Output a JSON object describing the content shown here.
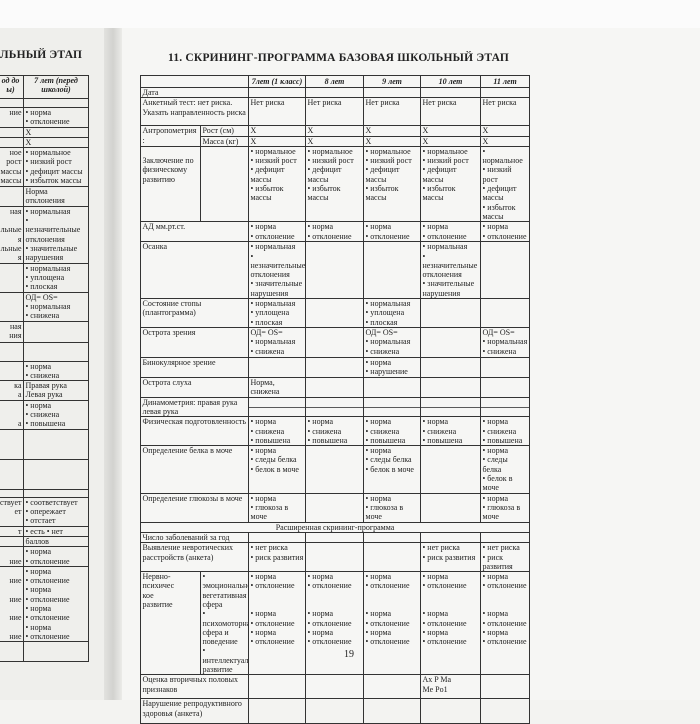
{
  "left_page": {
    "title": "ЛЬНЫЙ ЭТАП",
    "header": [
      "од до\nы)",
      "7 лет (перед\nшколой)"
    ],
    "rows": [
      [
        "",
        ""
      ],
      [
        "ние",
        "• норма\n• отклонение"
      ],
      [
        "",
        "X"
      ],
      [
        "",
        "X"
      ],
      [
        "ное\nрост\nмассы\n массы",
        "• нормальное\n• низкий рост\n• дефицит массы\n• избыток массы"
      ],
      [
        "",
        "Норма\nотклонения"
      ],
      [
        "ная\n\nльные\nя\nльные\nя",
        "• нормальная\n•\nнезначительные\nотклонения\n• значительные\nнарушения"
      ],
      [
        "",
        "• нормальная\n• уплощена\n• плоская"
      ],
      [
        "",
        "ОД= OS=\n• нормальная\n• снижена"
      ],
      [
        "ная\nния",
        ""
      ],
      [
        "",
        ""
      ],
      [
        "",
        "• норма\n• снижена"
      ],
      [
        "ка\nа",
        "Правая рука\nЛевая рука"
      ],
      [
        "\n\nа",
        "• норма\n• снижена\n• повышена"
      ],
      [
        "",
        ""
      ],
      [
        "",
        ""
      ],
      [
        "",
        ""
      ],
      [
        "ствует\nет",
        "• соответствует\n• опережает\n• отстает"
      ],
      [
        "т",
        "• есть • нет"
      ],
      [
        "",
        "баллов"
      ],
      [
        "\nние",
        "• норма\n• отклонение"
      ],
      [
        "\nние\n\nние\n\nние\n\nние",
        "• норма\n• отклонение\n• норма\n• отклонение\n• норма\n• отклонение\n• норма\n• отклонение"
      ],
      [
        "",
        ""
      ]
    ]
  },
  "right_page": {
    "title": "11. СКРИНИНГ-ПРОГРАММА БАЗОВАЯ ШКОЛЬНЫЙ ЭТАП",
    "page_number": "19",
    "columns": [
      "7лет (1 класс)",
      "8 лет",
      "9 лет",
      "10 лет",
      "11 лет"
    ],
    "rows": [
      {
        "label": "Дата",
        "cells": [
          "",
          "",
          "",
          "",
          ""
        ]
      },
      {
        "label": "Анкетный тест: нет риска. Указать направленность риска",
        "cells": [
          "Нет риска",
          "Нет риска",
          "Нет риска",
          "Нет риска",
          "Нет риска"
        ]
      },
      {
        "label": "Антропометрия\n:",
        "sub": "Рост (см)",
        "cells": [
          "X",
          "X",
          "X",
          "X",
          "X"
        ]
      },
      {
        "sub": "Масса (кг)",
        "cells": [
          "X",
          "X",
          "X",
          "X",
          "X"
        ]
      },
      {
        "label": "\nЗаключение по физическому развитию",
        "sub": "",
        "cells": [
          "• нормальное\n• низкий рост\n• дефицит\nмассы\n• избыток\nмассы",
          "• нормальное\n• низкий рост\n• дефицит\nмассы\n• избыток\nмассы",
          "• нормальное\n• низкий рост\n• дефицит\nмассы\n• избыток\nмассы",
          "• нормальное\n• низкий рост\n• дефицит\nмассы\n• избыток\nмассы",
          "• нормальное\n• низкий рост\n• дефицит\nмассы\n• избыток\nмассы"
        ]
      },
      {
        "label": "АД мм.рт.ст.",
        "cells": [
          "• норма\n• отклонение",
          "• норма\n• отклонение",
          "• норма\n• отклонение",
          "• норма\n• отклонение",
          "• норма\n• отклонение"
        ]
      },
      {
        "label": "Осанка",
        "cells": [
          "• нормальная\n•\nнезначительные\nотклонения\n• значительные\nнарушения",
          "",
          "",
          "• нормальная\n•\nнезначительные\nотклонения\n• значительные\nнарушения",
          ""
        ]
      },
      {
        "label": "Состояние стопы (плантограмма)",
        "cells": [
          "• нормальная\n• уплощена\n• плоская",
          "",
          "• нормальная\n• уплощена\n• плоская",
          "",
          ""
        ]
      },
      {
        "label": "Острота зрения",
        "cells": [
          "ОД= OS=\n• нормальная\n• снижена",
          "",
          "ОД= OS=\n• нормальная\n• снижена",
          "",
          "ОД= OS=\n• нормальная\n• снижена"
        ]
      },
      {
        "label": "Бинокулярное зрение",
        "cells": [
          "",
          "",
          "• норма\n• нарушение",
          "",
          ""
        ]
      },
      {
        "label": "Острота слуха",
        "cells": [
          "Норма,\nснижена",
          "",
          "",
          "",
          ""
        ]
      },
      {
        "label": "Динамометрия: правая рука левая рука",
        "split": true,
        "cells": [
          "",
          "",
          "",
          "",
          ""
        ]
      },
      {
        "label": "Физическая подготовленность",
        "cells": [
          "• норма\n• снижена\n• повышена",
          "• норма\n• снижена\n• повышена",
          "• норма\n• снижена\n• повышена",
          "• норма\n• снижена\n• повышена",
          "• норма\n• снижена\n• повышена"
        ]
      },
      {
        "label": "Определение белка в моче",
        "cells": [
          "• норма\n• следы белка\n• белок в моче",
          "",
          "• норма\n• следы белка\n• белок в моче",
          "",
          "• норма\n• следы белка\n• белок в моче"
        ]
      },
      {
        "label": "Определение глюкозы в моче",
        "cells": [
          "• норма\n• глюкоза в\nмоче",
          "",
          "• норма\n• глюкоза в\nмоче",
          "",
          "• норма\n• глюкоза в\nмоче"
        ]
      },
      {
        "full": "Расширенная скрининг-программа"
      },
      {
        "label": "Число заболеваний за год",
        "cells": [
          "",
          "",
          "",
          "",
          ""
        ]
      },
      {
        "label": "Выявление невротических расстройств (анкета)",
        "cells": [
          "• нет риска\n• риск развития",
          "",
          "",
          "• нет риска\n• риск развития",
          "• нет риска\n• риск развития"
        ]
      },
      {
        "label": "Нервно-\nпсихичес\nкое\nразвитие",
        "sub": "• эмоционально-\nвегетативная\nсфера\n• психомоторная\nсфера и поведение\n•\nинтеллектуальное\nразвитие",
        "cells": [
          "• норма\n• отклонение\n\n\n• норма\n• отклонение\n• норма\n• отклонение",
          "• норма\n• отклонение\n\n\n• норма\n• отклонение\n• норма\n• отклонение",
          "• норма\n• отклонение\n\n\n• норма\n• отклонение\n• норма\n• отклонение",
          "• норма\n• отклонение\n\n\n• норма\n• отклонение\n• норма\n• отклонение",
          "• норма\n• отклонение\n\n\n• норма\n• отклонение\n• норма\n• отклонение"
        ]
      },
      {
        "label": "Оценка вторичных половых признаков",
        "cells": [
          "",
          "",
          "",
          "Ax P Ma\nMe Po1",
          ""
        ]
      },
      {
        "label": "Нарушение репродуктивного здоровья (анкета)",
        "cells": [
          "",
          "",
          "",
          "",
          ""
        ]
      }
    ]
  }
}
